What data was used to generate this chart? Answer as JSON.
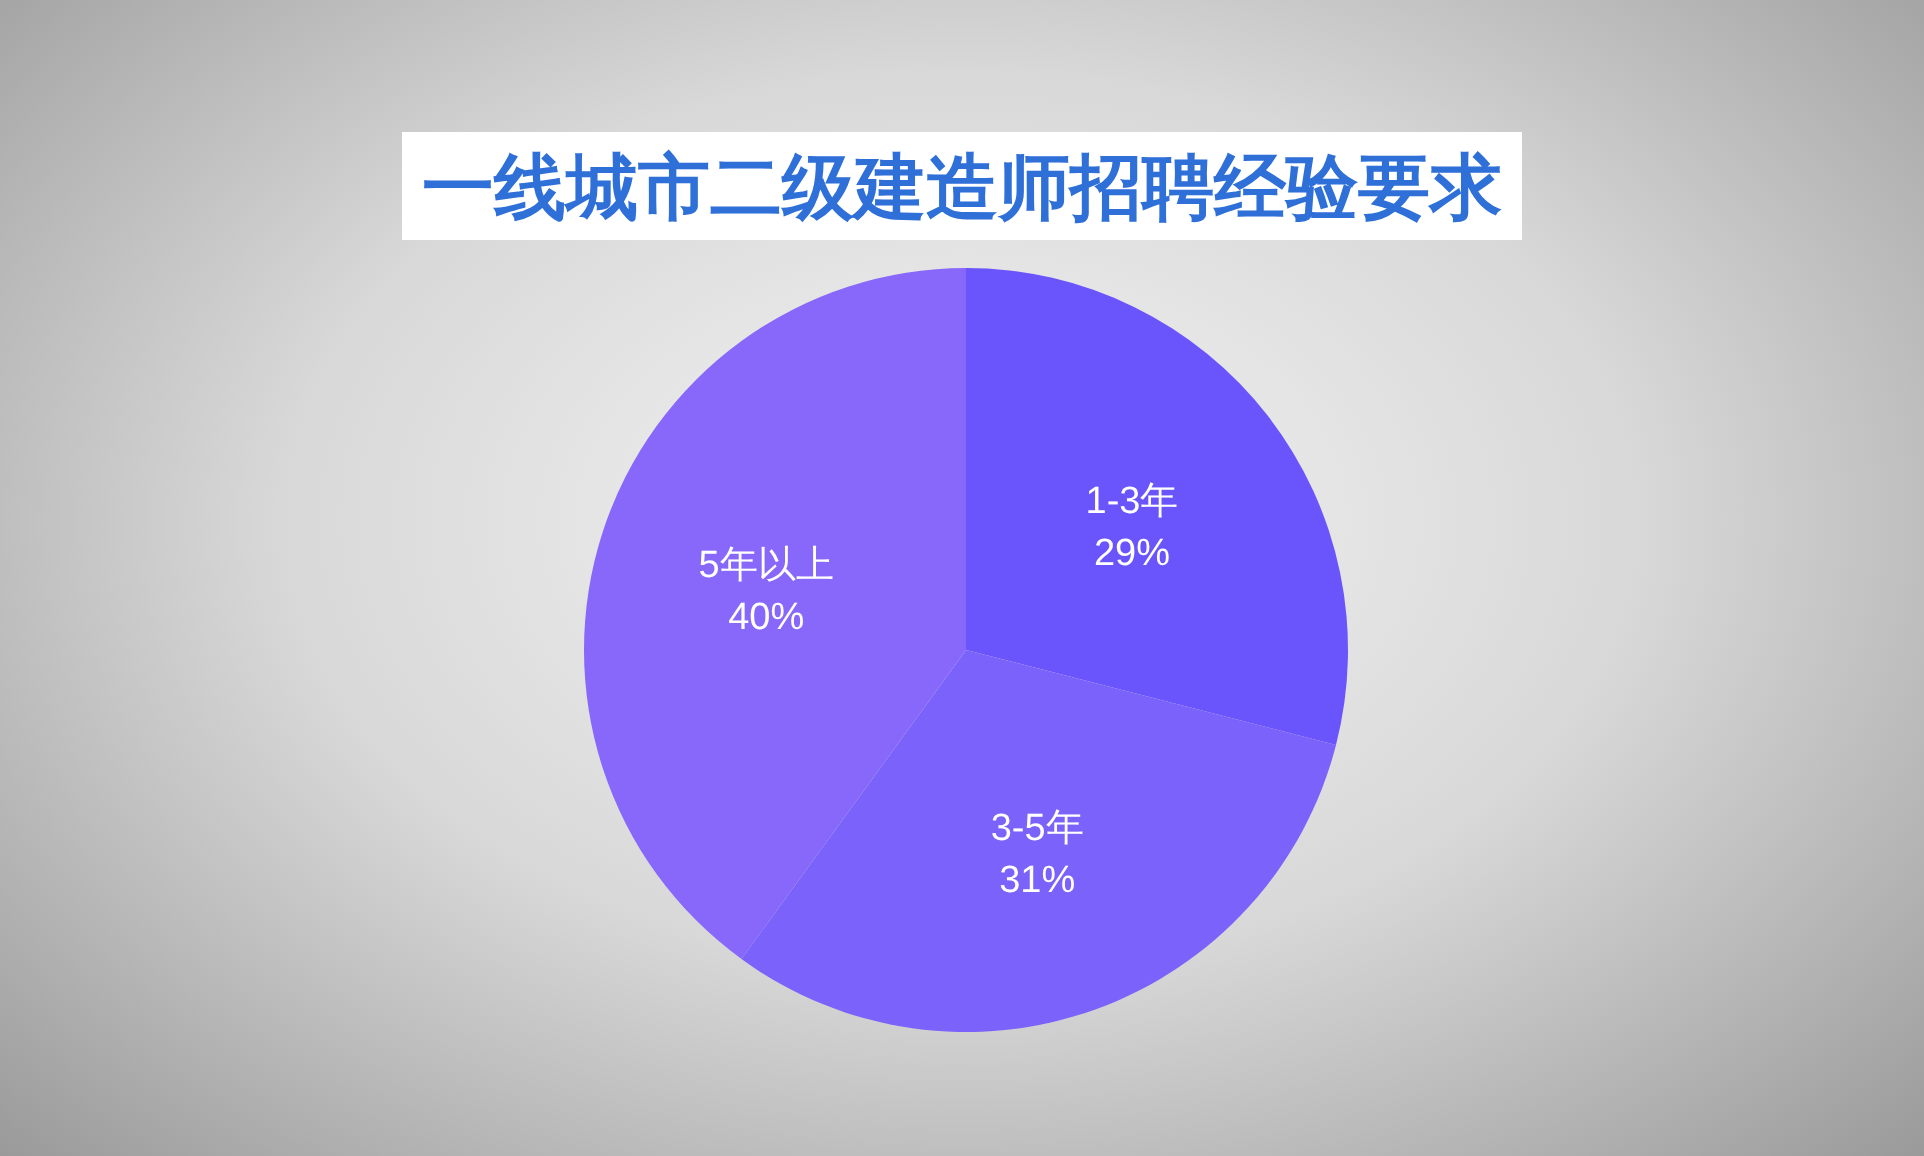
{
  "chart_data": {
    "type": "pie",
    "title": "一线城市二级建造师招聘经验要求",
    "categories": [
      "1-3年",
      "3-5年",
      "5年以上"
    ],
    "values": [
      29,
      31,
      40
    ],
    "colors": [
      "#6a55fc",
      "#7a62fa",
      "#8768fb"
    ],
    "value_labels": [
      "29%",
      "31%",
      "40%"
    ]
  }
}
